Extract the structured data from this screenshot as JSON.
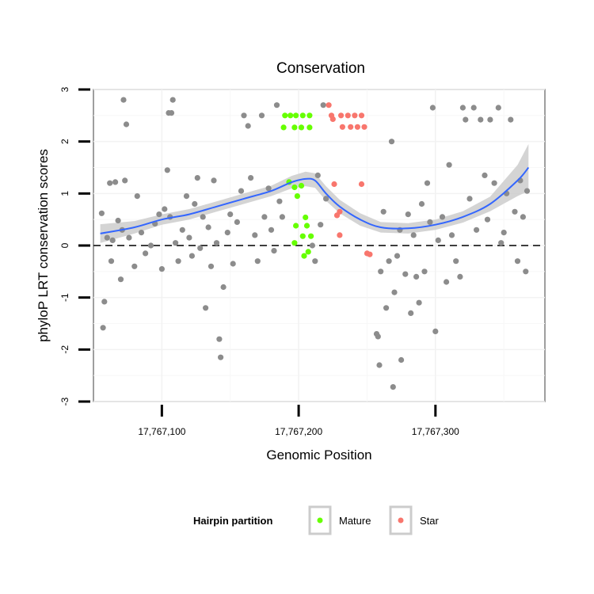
{
  "chart_data": {
    "type": "scatter",
    "title": "Conservation",
    "xlabel": "Genomic Position",
    "ylabel": "phyloP LRT conservation scores",
    "xlim": [
      17767050,
      17767380
    ],
    "ylim": [
      -3,
      3
    ],
    "x_ticks": [
      17767100,
      17767200,
      17767300
    ],
    "x_tick_labels": [
      "17,767,100",
      "17,767,200",
      "17,767,300"
    ],
    "y_ticks": [
      -3,
      -2,
      -1,
      0,
      1,
      2,
      3
    ],
    "y_tick_labels": [
      "-3",
      "-2",
      "-1",
      "0",
      "1",
      "2",
      "3"
    ],
    "grid": true,
    "reference_line": {
      "y": 0,
      "style": "dashed"
    },
    "legend": {
      "title": "Hairpin partition",
      "placement": "bottom",
      "entries": [
        {
          "label": "Mature",
          "color": "#66ff00"
        },
        {
          "label": "Star",
          "color": "#f8766d"
        }
      ]
    },
    "colors": {
      "other": "#8c8c8c",
      "smooth": "#3366ff",
      "band": "#cccccc"
    },
    "smooth": {
      "x": [
        17767055,
        17767080,
        17767100,
        17767120,
        17767140,
        17767160,
        17767180,
        17767195,
        17767205,
        17767212,
        17767220,
        17767230,
        17767245,
        17767260,
        17767280,
        17767300,
        17767320,
        17767340,
        17767360,
        17767368
      ],
      "y": [
        0.23,
        0.35,
        0.5,
        0.6,
        0.75,
        0.9,
        1.05,
        1.22,
        1.28,
        1.25,
        1.0,
        0.75,
        0.5,
        0.35,
        0.33,
        0.4,
        0.55,
        0.8,
        1.25,
        1.5
      ],
      "band_half_width": [
        0.18,
        0.12,
        0.1,
        0.1,
        0.1,
        0.1,
        0.1,
        0.12,
        0.14,
        0.14,
        0.14,
        0.13,
        0.12,
        0.1,
        0.1,
        0.1,
        0.11,
        0.14,
        0.3,
        0.45
      ]
    },
    "series": [
      {
        "name": "Mature",
        "color": "#66ff00",
        "points": [
          [
            17767190,
            2.5
          ],
          [
            17767194,
            2.5
          ],
          [
            17767198,
            2.5
          ],
          [
            17767203,
            2.5
          ],
          [
            17767208,
            2.5
          ],
          [
            17767189,
            2.27
          ],
          [
            17767197,
            2.27
          ],
          [
            17767202,
            2.27
          ],
          [
            17767208,
            2.27
          ],
          [
            17767193,
            1.22
          ],
          [
            17767197,
            1.12
          ],
          [
            17767202,
            1.15
          ],
          [
            17767199,
            0.95
          ],
          [
            17767205,
            0.54
          ],
          [
            17767198,
            0.38
          ],
          [
            17767206,
            0.38
          ],
          [
            17767203,
            0.18
          ],
          [
            17767197,
            0.05
          ],
          [
            17767209,
            0.18
          ],
          [
            17767207,
            -0.12
          ],
          [
            17767204,
            -0.2
          ]
        ]
      },
      {
        "name": "Star",
        "color": "#f8766d",
        "points": [
          [
            17767222,
            2.7
          ],
          [
            17767224,
            2.5
          ],
          [
            17767231,
            2.5
          ],
          [
            17767236,
            2.5
          ],
          [
            17767241,
            2.5
          ],
          [
            17767246,
            2.5
          ],
          [
            17767225,
            2.43
          ],
          [
            17767232,
            2.28
          ],
          [
            17767238,
            2.28
          ],
          [
            17767243,
            2.28
          ],
          [
            17767248,
            2.28
          ],
          [
            17767226,
            1.18
          ],
          [
            17767246,
            1.18
          ],
          [
            17767230,
            0.65
          ],
          [
            17767228,
            0.58
          ],
          [
            17767230,
            0.2
          ],
          [
            17767250,
            -0.15
          ],
          [
            17767252,
            -0.17
          ]
        ]
      },
      {
        "name": "",
        "color": "#8c8c8c",
        "points": [
          [
            17767072,
            2.8
          ],
          [
            17767108,
            2.8
          ],
          [
            17767074,
            2.33
          ],
          [
            17767107,
            2.55
          ],
          [
            17767105,
            2.55
          ],
          [
            17767056,
            0.62
          ],
          [
            17767058,
            -1.08
          ],
          [
            17767057,
            -1.58
          ],
          [
            17767062,
            1.2
          ],
          [
            17767066,
            1.22
          ],
          [
            17767060,
            0.15
          ],
          [
            17767063,
            -0.3
          ],
          [
            17767068,
            0.48
          ],
          [
            17767064,
            0.1
          ],
          [
            17767071,
            0.3
          ],
          [
            17767076,
            0.15
          ],
          [
            17767080,
            -0.4
          ],
          [
            17767070,
            -0.65
          ],
          [
            17767073,
            1.25
          ],
          [
            17767082,
            0.95
          ],
          [
            17767085,
            0.25
          ],
          [
            17767088,
            -0.15
          ],
          [
            17767092,
            0.0
          ],
          [
            17767095,
            0.42
          ],
          [
            17767098,
            0.6
          ],
          [
            17767100,
            -0.45
          ],
          [
            17767102,
            0.7
          ],
          [
            17767104,
            1.45
          ],
          [
            17767106,
            0.55
          ],
          [
            17767110,
            0.05
          ],
          [
            17767112,
            -0.3
          ],
          [
            17767115,
            0.3
          ],
          [
            17767118,
            0.95
          ],
          [
            17767120,
            0.15
          ],
          [
            17767122,
            -0.2
          ],
          [
            17767124,
            0.8
          ],
          [
            17767126,
            1.3
          ],
          [
            17767128,
            -0.05
          ],
          [
            17767130,
            0.55
          ],
          [
            17767132,
            -1.2
          ],
          [
            17767134,
            0.35
          ],
          [
            17767136,
            -0.4
          ],
          [
            17767138,
            1.25
          ],
          [
            17767140,
            0.05
          ],
          [
            17767142,
            -1.8
          ],
          [
            17767143,
            -2.15
          ],
          [
            17767145,
            -0.8
          ],
          [
            17767148,
            0.25
          ],
          [
            17767150,
            0.6
          ],
          [
            17767152,
            -0.35
          ],
          [
            17767155,
            0.45
          ],
          [
            17767158,
            1.05
          ],
          [
            17767160,
            2.5
          ],
          [
            17767163,
            2.3
          ],
          [
            17767165,
            1.3
          ],
          [
            17767168,
            0.2
          ],
          [
            17767170,
            -0.3
          ],
          [
            17767173,
            2.5
          ],
          [
            17767175,
            0.55
          ],
          [
            17767178,
            1.1
          ],
          [
            17767180,
            0.3
          ],
          [
            17767182,
            -0.1
          ],
          [
            17767184,
            2.7
          ],
          [
            17767186,
            0.85
          ],
          [
            17767188,
            0.55
          ],
          [
            17767210,
            0.0
          ],
          [
            17767212,
            -0.3
          ],
          [
            17767214,
            1.35
          ],
          [
            17767216,
            0.4
          ],
          [
            17767218,
            2.7
          ],
          [
            17767220,
            0.9
          ],
          [
            17767257,
            -1.7
          ],
          [
            17767258,
            -1.75
          ],
          [
            17767259,
            -2.3
          ],
          [
            17767260,
            -0.5
          ],
          [
            17767262,
            0.65
          ],
          [
            17767264,
            -1.2
          ],
          [
            17767266,
            -0.3
          ],
          [
            17767268,
            2.0
          ],
          [
            17767269,
            -2.72
          ],
          [
            17767270,
            -0.9
          ],
          [
            17767272,
            -0.2
          ],
          [
            17767274,
            0.3
          ],
          [
            17767275,
            -2.2
          ],
          [
            17767278,
            -0.55
          ],
          [
            17767280,
            0.6
          ],
          [
            17767282,
            -1.3
          ],
          [
            17767284,
            0.2
          ],
          [
            17767286,
            -0.6
          ],
          [
            17767288,
            -1.1
          ],
          [
            17767290,
            0.8
          ],
          [
            17767292,
            -0.5
          ],
          [
            17767294,
            1.2
          ],
          [
            17767296,
            0.45
          ],
          [
            17767298,
            2.65
          ],
          [
            17767300,
            -1.65
          ],
          [
            17767302,
            0.1
          ],
          [
            17767305,
            0.55
          ],
          [
            17767308,
            -0.7
          ],
          [
            17767310,
            1.55
          ],
          [
            17767312,
            0.2
          ],
          [
            17767315,
            -0.3
          ],
          [
            17767318,
            -0.6
          ],
          [
            17767320,
            2.65
          ],
          [
            17767322,
            2.42
          ],
          [
            17767325,
            0.9
          ],
          [
            17767328,
            2.65
          ],
          [
            17767330,
            0.3
          ],
          [
            17767333,
            2.42
          ],
          [
            17767336,
            1.35
          ],
          [
            17767338,
            0.5
          ],
          [
            17767340,
            2.42
          ],
          [
            17767343,
            1.2
          ],
          [
            17767346,
            2.65
          ],
          [
            17767348,
            0.05
          ],
          [
            17767350,
            0.25
          ],
          [
            17767352,
            1.0
          ],
          [
            17767355,
            2.42
          ],
          [
            17767358,
            0.65
          ],
          [
            17767360,
            -0.3
          ],
          [
            17767362,
            1.25
          ],
          [
            17767364,
            0.55
          ],
          [
            17767366,
            -0.5
          ],
          [
            17767367,
            1.05
          ]
        ]
      }
    ]
  }
}
